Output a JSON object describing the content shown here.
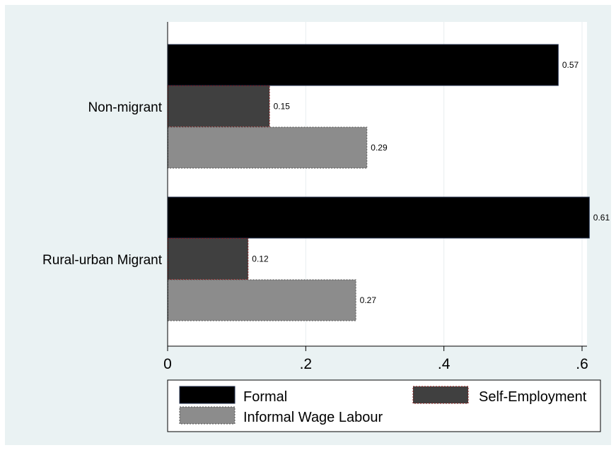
{
  "chart_data": {
    "type": "bar",
    "orientation": "horizontal",
    "categories": [
      "Non-migrant",
      "Rural-urban Migrant"
    ],
    "series": [
      {
        "name": "Formal",
        "values": [
          0.565,
          0.61
        ],
        "labels": [
          "0.57",
          "0.61"
        ],
        "color": "#000000",
        "outline": "#1f2d4a"
      },
      {
        "name": "Self-Employment",
        "values": [
          0.147,
          0.116
        ],
        "labels": [
          "0.15",
          "0.12"
        ],
        "color": "#404040",
        "outline": "#8b1a1a"
      },
      {
        "name": "Informal Wage Labour",
        "values": [
          0.288,
          0.272
        ],
        "labels": [
          "0.29",
          "0.27"
        ],
        "color": "#8c8c8c",
        "outline": "#555555"
      }
    ],
    "xlim": [
      0,
      0.6
    ],
    "xticks": [
      0,
      0.2,
      0.4,
      0.6
    ],
    "xtick_labels": [
      "0",
      ".2",
      ".4",
      ".6"
    ],
    "xlabel": "",
    "ylabel": "",
    "title": "",
    "grid": true,
    "legend_position": "bottom",
    "colors": {
      "plot_background": "#ffffff",
      "outer_background": "#eaf2f3",
      "grid": "#e8eef0"
    }
  }
}
